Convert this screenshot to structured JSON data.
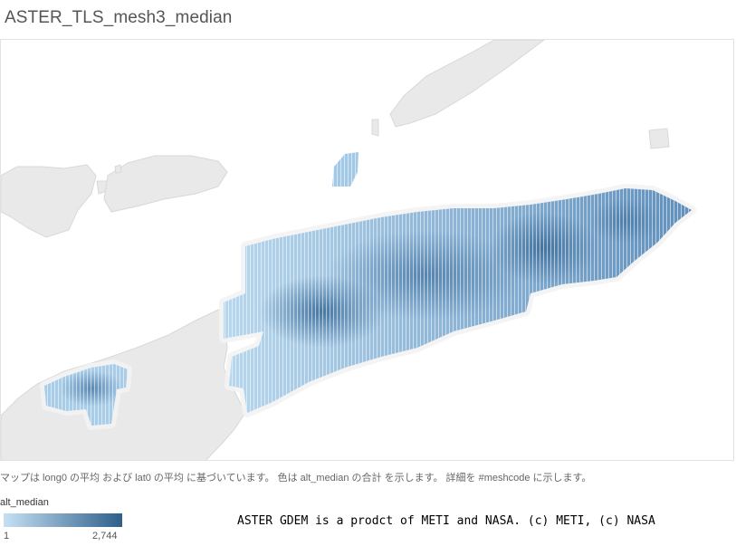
{
  "title": "ASTER_TLS_mesh3_median",
  "caption": "マップは long0 の平均 および lat0 の平均 に基づいています。 色は alt_median の合計 を示します。 詳細を #meshcode に示します。",
  "legend": {
    "title": "alt_median",
    "min_label": "1",
    "max_label": "2,744",
    "color_low": "#c5e0f3",
    "color_high": "#2e5f8a"
  },
  "credit": "ASTER GDEM is a prodct of METI and NASA. (c) METI, (c) NASA",
  "colors": {
    "land": "#e9e9e9",
    "land_stroke": "#d8d8d8",
    "sea": "#ffffff"
  }
}
